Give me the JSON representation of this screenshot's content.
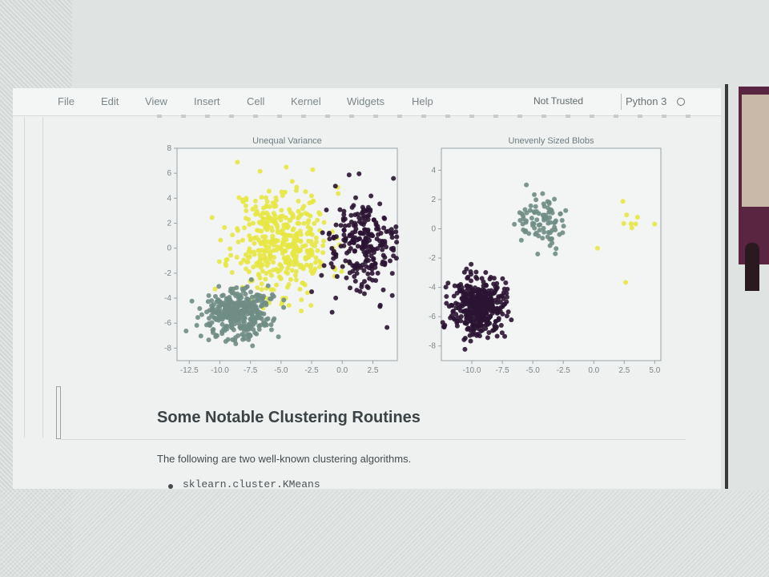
{
  "menubar": {
    "items": [
      "File",
      "Edit",
      "View",
      "Insert",
      "Cell",
      "Kernel",
      "Widgets",
      "Help"
    ],
    "trust_status": "Not Trusted",
    "kernel_name": "Python 3"
  },
  "colors": {
    "yellow_cluster": "#e7e744",
    "teal_cluster": "#6f8d84",
    "purple_cluster": "#2b1433"
  },
  "chart_data": [
    {
      "type": "scatter",
      "title": "Unequal Variance",
      "xlim": [
        -13.5,
        4.5
      ],
      "ylim": [
        -9,
        8
      ],
      "xticks": [
        -12.5,
        -10.0,
        -7.5,
        -5.0,
        -2.5,
        0.0,
        2.5
      ],
      "xtick_labels": [
        "-12.5",
        "-10.0",
        "-7.5",
        "-5.0",
        "-2.5",
        "0.0",
        "2.5"
      ],
      "yticks": [
        8,
        6,
        4,
        2,
        0,
        -2,
        -4,
        -6,
        -8
      ],
      "ytick_labels": [
        "8",
        "6",
        "4",
        "2",
        "0",
        "-2",
        "-4",
        "-6",
        "-8"
      ],
      "grid": false,
      "series": [
        {
          "color": "#e7e744",
          "center": [
            -5.0,
            0.5
          ],
          "spread": [
            2.0,
            2.2
          ],
          "count": 420,
          "values": []
        },
        {
          "color": "#6f8d84",
          "center": [
            -8.5,
            -5.2
          ],
          "spread": [
            1.3,
            1.0
          ],
          "count": 380,
          "values": []
        },
        {
          "color": "#2b1433",
          "center": [
            1.7,
            0.3
          ],
          "spread": [
            1.6,
            2.0
          ],
          "count": 260,
          "values": []
        }
      ]
    },
    {
      "type": "scatter",
      "title": "Unevenly Sized Blobs",
      "xlim": [
        -12.5,
        5.5
      ],
      "ylim": [
        -9,
        5.5
      ],
      "xticks": [
        -10.0,
        -7.5,
        -5.0,
        -2.5,
        0.0,
        2.5,
        5.0
      ],
      "xtick_labels": [
        "-10.0",
        "-7.5",
        "-5.0",
        "-2.5",
        "0.0",
        "2.5",
        "5.0"
      ],
      "yticks": [
        4,
        2,
        0,
        -2,
        -4,
        -6,
        -8
      ],
      "ytick_labels": [
        "4",
        "2",
        "0",
        "-2",
        "-4",
        "-6",
        "-8"
      ],
      "grid": false,
      "series": [
        {
          "color": "#2b1433",
          "center": [
            -9.5,
            -5.3
          ],
          "spread": [
            1.1,
            1.0
          ],
          "count": 420,
          "values": []
        },
        {
          "color": "#6f8d84",
          "center": [
            -4.2,
            0.5
          ],
          "spread": [
            0.9,
            0.9
          ],
          "count": 90,
          "values": []
        },
        {
          "color": "#e7e744",
          "center": [
            2.6,
            0.4
          ],
          "spread": [
            1.2,
            1.3
          ],
          "count": 10,
          "values": []
        }
      ]
    }
  ],
  "content": {
    "heading": "Some Notable Clustering Routines",
    "paragraph": "The following are two well-known clustering algorithms.",
    "bullets": [
      "sklearn.cluster.KMeans"
    ]
  }
}
